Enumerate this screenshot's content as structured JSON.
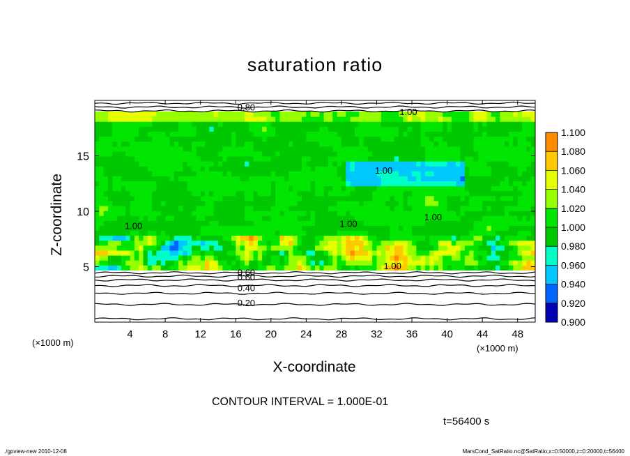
{
  "colors": {
    "background": "#ffffff",
    "contour_line": "#000000",
    "colorbar": [
      "#7b00b4",
      "#0000b4",
      "#0064ff",
      "#00c8ff",
      "#00ffc8",
      "#00c800",
      "#00e600",
      "#96ff00",
      "#e6ff00",
      "#ffc800",
      "#ff8c00",
      "#ff3200",
      "#ff6464",
      "#ffb4b4"
    ]
  },
  "chart_data": {
    "type": "heatmap",
    "title": "saturation ratio",
    "xlabel": "X-coordinate",
    "ylabel": "Z-coordinate",
    "x_unit": "(×1000 m)",
    "xlim": [
      0,
      50
    ],
    "ylim": [
      0,
      20
    ],
    "x_ticks": [
      4,
      8,
      12,
      16,
      20,
      24,
      28,
      32,
      36,
      40,
      44,
      48
    ],
    "y_ticks": [
      5,
      10,
      15
    ],
    "colorbar": {
      "levels": [
        "1.100",
        "1.080",
        "1.060",
        "1.040",
        "1.020",
        "1.000",
        "0.980",
        "0.960",
        "0.940",
        "0.920",
        "0.900"
      ],
      "min": 0.9,
      "max": 1.1
    },
    "contour_labels": [
      "0.80",
      "1.00",
      "1.00",
      "1.00",
      "1.00",
      "1.00",
      "1.00",
      "0.60",
      "0.60",
      "0.40",
      "0.20"
    ],
    "contour_interval_text": "CONTOUR INTERVAL = 1.000E-01",
    "time_text": "t=56400 s",
    "grid": false,
    "legend": "colorbar-right"
  },
  "footer": {
    "left": "./gpview-new 2010-12-08",
    "right": "MarsCond_SatRatio.nc@SatRatio,x=0:50000,z=0:20000,t=56400"
  }
}
